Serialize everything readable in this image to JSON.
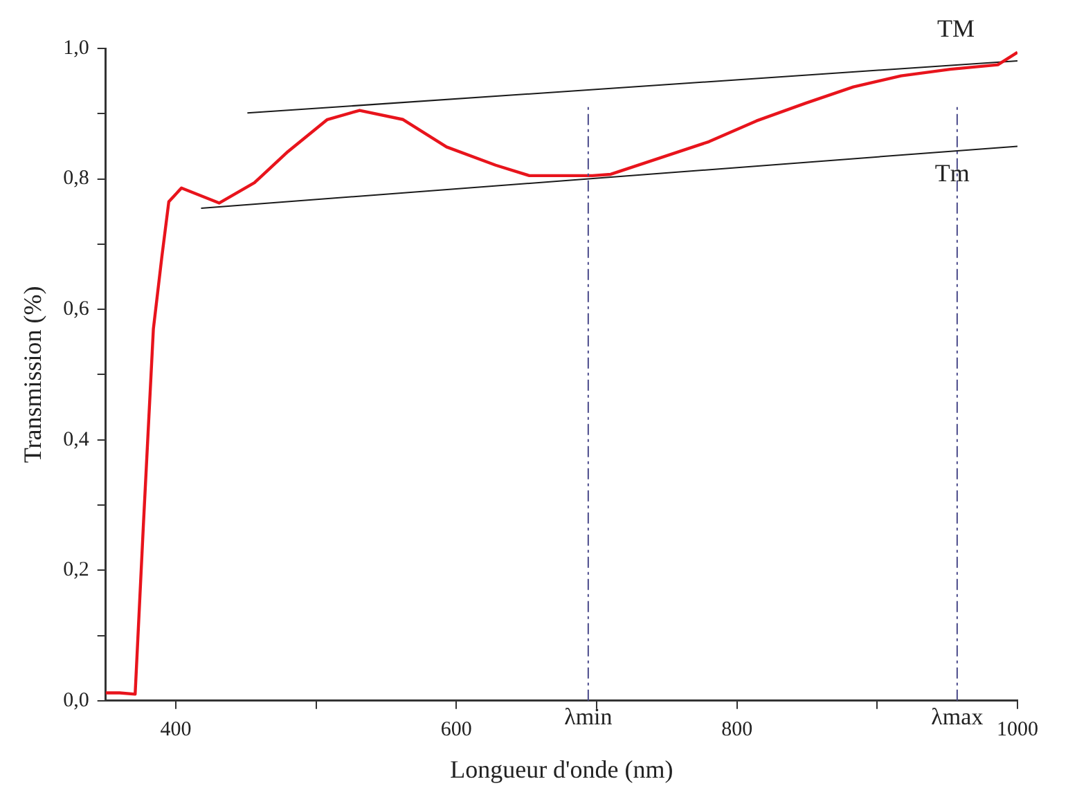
{
  "chart_data": {
    "type": "line",
    "xlabel": "Longueur d'onde (nm)",
    "ylabel": "Transmission (%)",
    "xlim": [
      350,
      1000
    ],
    "xticks": [
      {
        "value": 400,
        "label": "400"
      },
      {
        "value": 500,
        "label": null
      },
      {
        "value": 600,
        "label": "600"
      },
      {
        "value": 700,
        "label": null
      },
      {
        "value": 800,
        "label": "800"
      },
      {
        "value": 900,
        "label": null
      },
      {
        "value": 1000,
        "label": "1000"
      }
    ],
    "ylim": [
      0,
      1
    ],
    "yticks": [
      {
        "value": 0,
        "label": "0,0"
      },
      {
        "value": 0.1,
        "label": null
      },
      {
        "value": 0.2,
        "label": "0,2"
      },
      {
        "value": 0.3,
        "label": null
      },
      {
        "value": 0.4,
        "label": "0,4"
      },
      {
        "value": 0.5,
        "label": null
      },
      {
        "value": 0.6,
        "label": "0,6"
      },
      {
        "value": 0.7,
        "label": null
      },
      {
        "value": 0.8,
        "label": "0,8"
      },
      {
        "value": 0.9,
        "label": null
      },
      {
        "value": 1,
        "label": "1,0"
      }
    ],
    "grid": false,
    "legend": false,
    "marker": "none",
    "series": [
      {
        "color": "#e8141c",
        "x": [
          350,
          360,
          371,
          377,
          384,
          390,
          395,
          404,
          431,
          456,
          480,
          508,
          531,
          562,
          593,
          628,
          652,
          697,
          710,
          745,
          780,
          814,
          849,
          883,
          917,
          952,
          986,
          1000
        ],
        "values": [
          0.012,
          0.012,
          0.01,
          0.275,
          0.57,
          0.68,
          0.765,
          0.786,
          0.763,
          0.794,
          0.842,
          0.891,
          0.905,
          0.891,
          0.849,
          0.821,
          0.805,
          0.805,
          0.807,
          0.832,
          0.857,
          0.889,
          0.916,
          0.941,
          0.958,
          0.968,
          0.975,
          0.994
        ]
      },
      {
        "name": "TM",
        "color": "#1a1a1a",
        "x": [
          451,
          1000
        ],
        "values": [
          0.901,
          0.981
        ]
      },
      {
        "name": "Tm",
        "color": "#1a1a1a",
        "x": [
          418,
          1000
        ],
        "values": [
          0.755,
          0.85
        ]
      }
    ],
    "ref_lines": [
      {
        "axis": "x",
        "value": 694,
        "label": "λmin",
        "color": "#4a4a8a",
        "line_style": "dashdot"
      },
      {
        "axis": "x",
        "value": 957,
        "label": "λmax",
        "color": "#4a4a8a",
        "line_style": "dashdot"
      }
    ]
  }
}
